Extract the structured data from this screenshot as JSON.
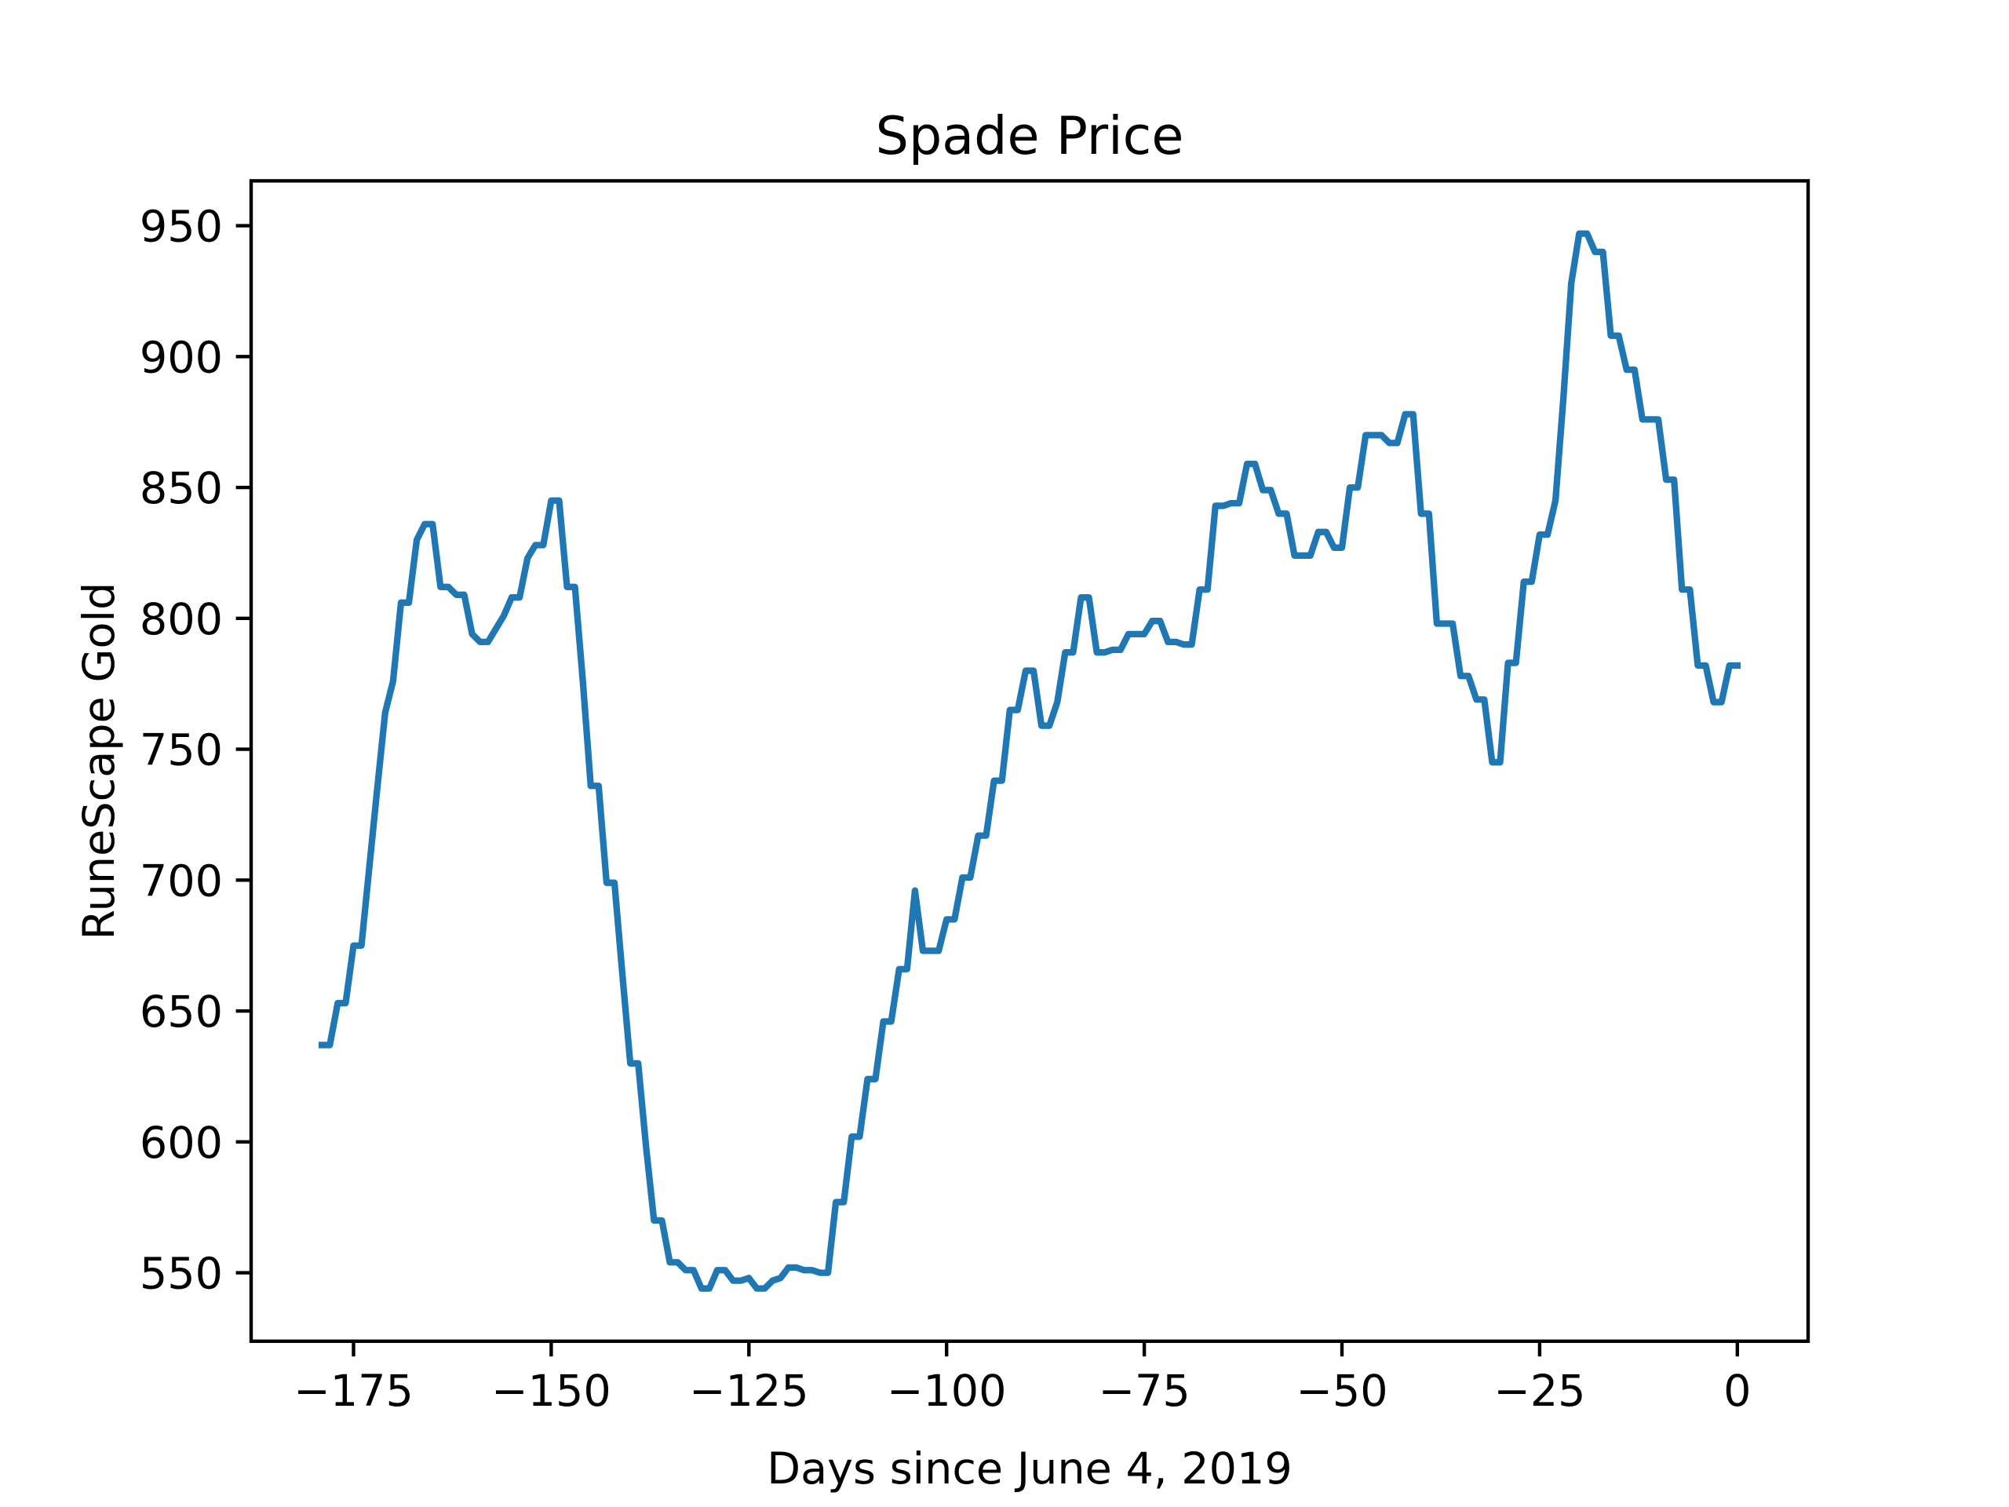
{
  "chart_data": {
    "type": "line",
    "title": "Spade Price",
    "x_label": "Days since June 4, 2019",
    "y_label": "RuneScape Gold",
    "x": [
      -179,
      -178,
      -177,
      -176,
      -175,
      -174,
      -173,
      -172,
      -171,
      -170,
      -169,
      -168,
      -167,
      -166,
      -165,
      -164,
      -163,
      -162,
      -161,
      -160,
      -159,
      -158,
      -157,
      -156,
      -155,
      -154,
      -153,
      -152,
      -151,
      -150,
      -149,
      -148,
      -147,
      -146,
      -145,
      -144,
      -143,
      -142,
      -141,
      -140,
      -139,
      -138,
      -137,
      -136,
      -135,
      -134,
      -133,
      -132,
      -131,
      -130,
      -129,
      -128,
      -127,
      -126,
      -125,
      -124,
      -123,
      -122,
      -121,
      -120,
      -119,
      -118,
      -117,
      -116,
      -115,
      -114,
      -113,
      -112,
      -111,
      -110,
      -109,
      -108,
      -107,
      -106,
      -105,
      -104,
      -103,
      -102,
      -101,
      -100,
      -99,
      -98,
      -97,
      -96,
      -95,
      -94,
      -93,
      -92,
      -91,
      -90,
      -89,
      -88,
      -87,
      -86,
      -85,
      -84,
      -83,
      -82,
      -81,
      -80,
      -79,
      -78,
      -77,
      -76,
      -75,
      -74,
      -73,
      -72,
      -71,
      -70,
      -69,
      -68,
      -67,
      -66,
      -65,
      -64,
      -63,
      -62,
      -61,
      -60,
      -59,
      -58,
      -57,
      -56,
      -55,
      -54,
      -53,
      -52,
      -51,
      -50,
      -49,
      -48,
      -47,
      -46,
      -45,
      -44,
      -43,
      -42,
      -41,
      -40,
      -39,
      -38,
      -37,
      -36,
      -35,
      -34,
      -33,
      -32,
      -31,
      -30,
      -29,
      -28,
      -27,
      -26,
      -25,
      -24,
      -23,
      -22,
      -21,
      -20,
      -19,
      -18,
      -17,
      -16,
      -15,
      -14,
      -13,
      -12,
      -11,
      -10,
      -9,
      -8,
      -7,
      -6,
      -5,
      -4,
      -3,
      -2,
      -1,
      0
    ],
    "series": [
      {
        "color": "#1f77b4",
        "values": [
          637,
          637,
          653,
          653,
          675,
          675,
          705,
          735,
          764,
          776,
          806,
          806,
          830,
          836,
          836,
          812,
          812,
          809,
          809,
          794,
          791,
          791,
          796,
          801,
          808,
          808,
          823,
          828,
          828,
          845,
          845,
          812,
          812,
          776,
          736,
          736,
          699,
          699,
          664,
          630,
          630,
          598,
          570,
          570,
          554,
          554,
          551,
          551,
          544,
          544,
          551,
          551,
          547,
          547,
          548,
          544,
          544,
          547,
          548,
          552,
          552,
          551,
          551,
          550,
          550,
          577,
          577,
          602,
          602,
          624,
          624,
          646,
          646,
          666,
          666,
          696,
          673,
          673,
          673,
          685,
          685,
          701,
          701,
          717,
          717,
          738,
          738,
          765,
          765,
          780,
          780,
          759,
          759,
          768,
          787,
          787,
          808,
          808,
          787,
          787,
          788,
          788,
          794,
          794,
          794,
          799,
          799,
          791,
          791,
          790,
          790,
          811,
          811,
          843,
          843,
          844,
          844,
          859,
          859,
          849,
          849,
          840,
          840,
          824,
          824,
          824,
          833,
          833,
          827,
          827,
          850,
          850,
          870,
          870,
          870,
          867,
          867,
          878,
          878,
          840,
          840,
          798,
          798,
          798,
          778,
          778,
          769,
          769,
          745,
          745,
          783,
          783,
          814,
          814,
          832,
          832,
          845,
          884,
          928,
          947,
          947,
          940,
          940,
          908,
          908,
          895,
          895,
          876,
          876,
          876,
          853,
          853,
          811,
          811,
          782,
          782,
          768,
          768,
          782,
          782
        ]
      }
    ],
    "xlim": [
      -187.95,
      8.95
    ],
    "ylim": [
      523.85,
      967.15
    ],
    "xticks": [
      {
        "value": -175,
        "label": "−175"
      },
      {
        "value": -150,
        "label": "−150"
      },
      {
        "value": -125,
        "label": "−125"
      },
      {
        "value": -100,
        "label": "−100"
      },
      {
        "value": -75,
        "label": "−75"
      },
      {
        "value": -50,
        "label": "−50"
      },
      {
        "value": -25,
        "label": "−25"
      },
      0
    ],
    "yticks": [
      550,
      600,
      650,
      700,
      750,
      800,
      850,
      900,
      950
    ]
  }
}
